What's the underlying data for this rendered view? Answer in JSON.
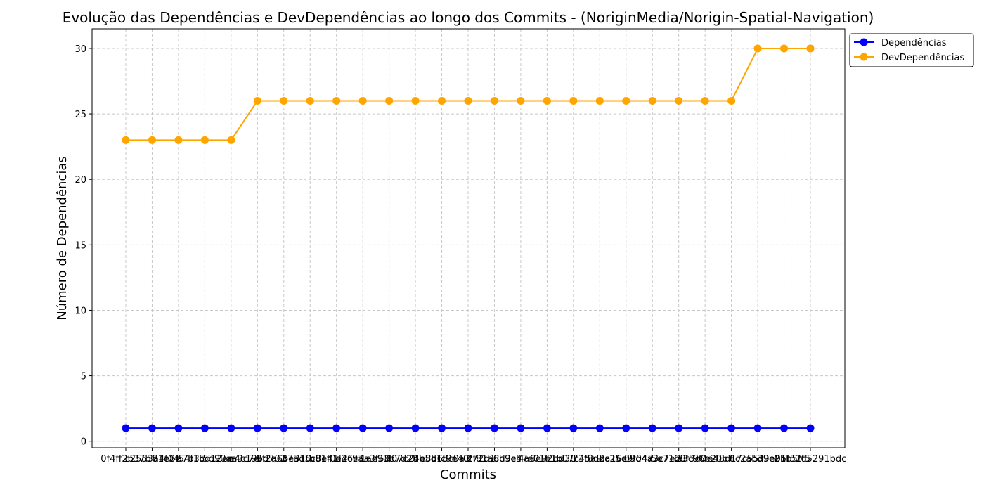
{
  "chart_data": {
    "type": "line",
    "title": "Evolução das Dependências e DevDependências ao longo dos Commits - (NoriginMedia/Norigin-Spatial-Navigation)",
    "xlabel": "Commits",
    "ylabel": "Número de Dependências",
    "ylim": [
      -0.5,
      31.5
    ],
    "yticks": [
      0,
      5,
      10,
      15,
      20,
      25,
      30
    ],
    "grid": true,
    "legend_position": "top-right",
    "categories": [
      "0f4ff2b37b",
      "c2553a4f04",
      "81e8f54f15",
      "a7b3cd12ee",
      "5d90aa3c7e",
      "e4c19bd702",
      "9f2a6be310",
      "37ad5c8e41",
      "b81f0e2c9a",
      "d46c7a3f58",
      "1ae93b7d20",
      "f07c24e8b6",
      "6b5d18c0a3",
      "c9e40f72d1",
      "2f81a6b9e4",
      "8d3c57e01f",
      "4a6e92bd38",
      "e1b07c45a9",
      "73f8d2a16c",
      "bc25e9f047",
      "09d4a3c7e2",
      "5e71b8f3d0",
      "a3c96e20b7",
      "fe48d17c55",
      "6c2ab39e81",
      "d9e05f52f5",
      "2bb5f65291bdc"
    ],
    "series": [
      {
        "name": "Dependências",
        "color": "#0000ff",
        "values": [
          1,
          1,
          1,
          1,
          1,
          1,
          1,
          1,
          1,
          1,
          1,
          1,
          1,
          1,
          1,
          1,
          1,
          1,
          1,
          1,
          1,
          1,
          1,
          1,
          1,
          1,
          1
        ]
      },
      {
        "name": "DevDependências",
        "color": "#ffa500",
        "values": [
          23,
          23,
          23,
          23,
          23,
          26,
          26,
          26,
          26,
          26,
          26,
          26,
          26,
          26,
          26,
          26,
          26,
          26,
          26,
          26,
          26,
          26,
          26,
          26,
          30,
          30,
          30
        ]
      }
    ]
  }
}
